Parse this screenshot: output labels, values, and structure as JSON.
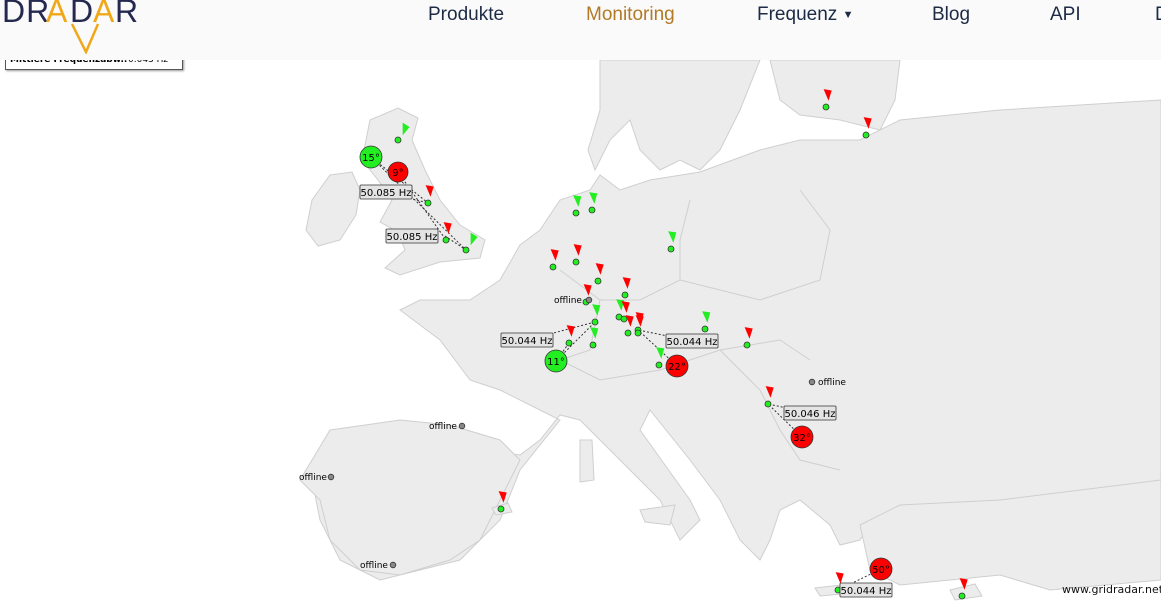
{
  "header": {
    "logo_text": "DRADAR",
    "nav": [
      {
        "label": "Produkte",
        "active": false
      },
      {
        "label": "Monitoring",
        "active": true
      },
      {
        "label": "Frequenz",
        "dropdown": true
      },
      {
        "label": "Blog"
      },
      {
        "label": "API"
      },
      {
        "label": "D"
      }
    ]
  },
  "info_box": {
    "label": "Mittlere Frequenzabw..",
    "value": "0.043 Hz"
  },
  "map": {
    "offline_label": "offline",
    "frequency_labels": [
      "50.085 Hz",
      "50.085 Hz",
      "50.044 Hz",
      "50.044 Hz",
      "50.046 Hz",
      "50.044 Hz"
    ],
    "phase_angles": [
      {
        "text": "15°",
        "status": "green"
      },
      {
        "text": "9°",
        "status": "red"
      },
      {
        "text": "11°",
        "status": "green"
      },
      {
        "text": "22°",
        "status": "red"
      },
      {
        "text": "32°",
        "status": "red"
      },
      {
        "text": "50°",
        "status": "red"
      }
    ],
    "credit": "www.gridradar.net"
  },
  "colors": {
    "green": "#22ee22",
    "red": "#ff0000",
    "offline": "#888888",
    "land": "#ececec",
    "border": "#cccccc",
    "nav_active": "#b27a26",
    "nav": "#1d2b45"
  }
}
